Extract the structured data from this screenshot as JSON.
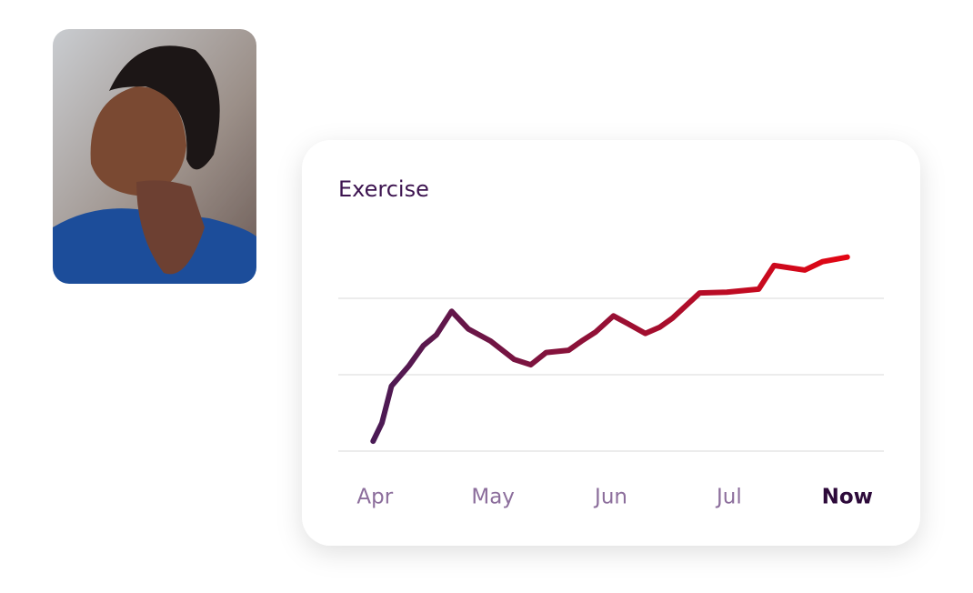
{
  "chart_data": {
    "type": "line",
    "title": "Exercise",
    "x": [
      -0.015,
      0.06,
      0.14,
      0.29,
      0.41,
      0.52,
      0.65,
      0.79,
      0.98,
      1.18,
      1.32,
      1.45,
      1.64,
      1.75,
      1.87,
      2.02,
      2.14,
      2.29,
      2.41,
      2.52,
      2.75,
      2.98,
      3.25,
      3.38,
      3.64,
      3.79,
      4.0
    ],
    "values": [
      0.13,
      0.37,
      0.85,
      1.12,
      1.38,
      1.52,
      1.83,
      1.6,
      1.44,
      1.2,
      1.13,
      1.29,
      1.32,
      1.44,
      1.56,
      1.77,
      1.67,
      1.54,
      1.62,
      1.74,
      2.07,
      2.08,
      2.12,
      2.43,
      2.37,
      2.48,
      2.54
    ],
    "xlim": [
      -0.31,
      4.31
    ],
    "xticks": [
      {
        "value": 0,
        "label": "Apr"
      },
      {
        "value": 1,
        "label": "May"
      },
      {
        "value": 2,
        "label": "Jun"
      },
      {
        "value": 3,
        "label": "Jul"
      },
      {
        "value": 4,
        "label": "Now"
      }
    ],
    "ylim": [
      0,
      2.6
    ],
    "yticks": [
      0,
      1,
      2
    ],
    "grid": true,
    "colors": [
      "#4a1a55",
      "#e30613"
    ]
  }
}
